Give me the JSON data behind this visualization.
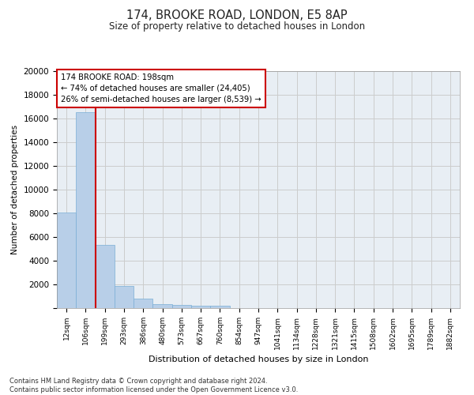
{
  "title_line1": "174, BROOKE ROAD, LONDON, E5 8AP",
  "title_line2": "Size of property relative to detached houses in London",
  "xlabel": "Distribution of detached houses by size in London",
  "ylabel": "Number of detached properties",
  "categories": [
    "12sqm",
    "106sqm",
    "199sqm",
    "293sqm",
    "386sqm",
    "480sqm",
    "573sqm",
    "667sqm",
    "760sqm",
    "854sqm",
    "947sqm",
    "1041sqm",
    "1134sqm",
    "1228sqm",
    "1321sqm",
    "1415sqm",
    "1508sqm",
    "1602sqm",
    "1695sqm",
    "1789sqm",
    "1882sqm"
  ],
  "values": [
    8100,
    16500,
    5350,
    1850,
    800,
    340,
    270,
    220,
    200,
    0,
    0,
    0,
    0,
    0,
    0,
    0,
    0,
    0,
    0,
    0,
    0
  ],
  "bar_color": "#b8cfe8",
  "bar_edge_color": "#7aaed6",
  "highlight_line_color": "#cc0000",
  "annotation_text": "174 BROOKE ROAD: 198sqm\n← 74% of detached houses are smaller (24,405)\n26% of semi-detached houses are larger (8,539) →",
  "annotation_box_color": "#ffffff",
  "annotation_box_edge_color": "#cc0000",
  "ylim": [
    0,
    20000
  ],
  "yticks": [
    0,
    2000,
    4000,
    6000,
    8000,
    10000,
    12000,
    14000,
    16000,
    18000,
    20000
  ],
  "grid_color": "#cccccc",
  "bg_color": "#e8eef4",
  "footnote": "Contains HM Land Registry data © Crown copyright and database right 2024.\nContains public sector information licensed under the Open Government Licence v3.0."
}
